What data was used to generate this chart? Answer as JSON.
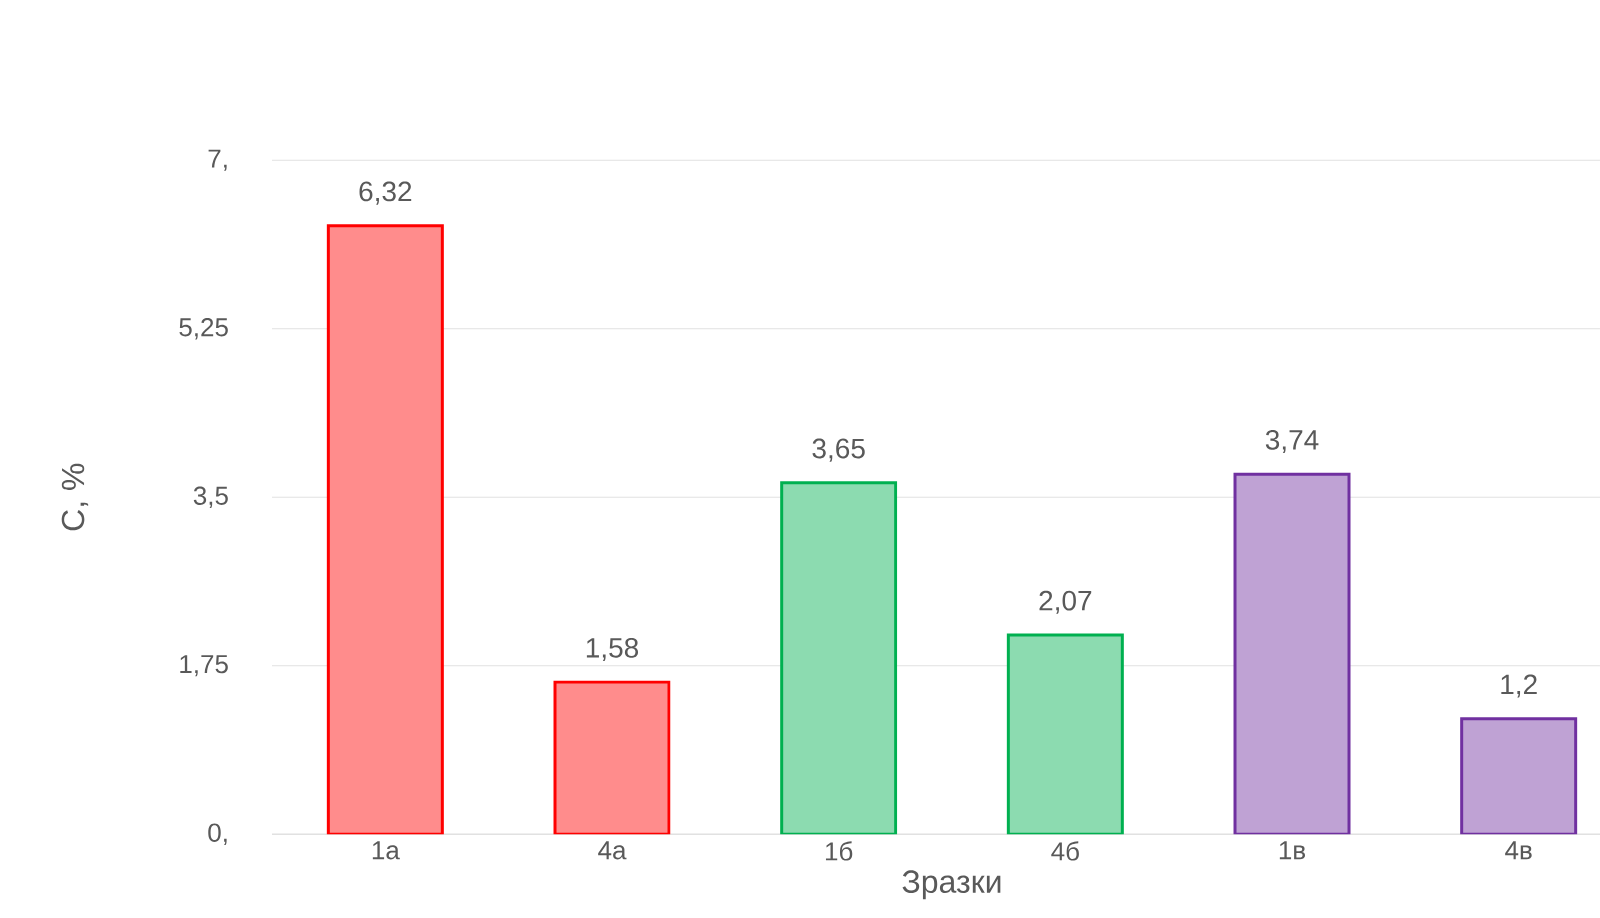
{
  "chart_data": {
    "type": "bar",
    "xlabel": "Зразки",
    "ylabel": "С, %",
    "categories": [
      "1а",
      "4а",
      "1б",
      "4б",
      "1в",
      "4в"
    ],
    "values": [
      6.32,
      1.58,
      3.65,
      2.07,
      3.74,
      1.2
    ],
    "colors": [
      "#ff0000",
      "#ff0000",
      "#00b050",
      "#00b050",
      "#7030a0",
      "#7030a0"
    ],
    "value_labels": [
      "6,32",
      "1,58",
      "3,65",
      "2,07",
      "3,74",
      "1,2"
    ],
    "ylim": [
      0,
      7
    ],
    "yticks": [
      {
        "value": 0,
        "label": "0,"
      },
      {
        "value": 1.75,
        "label": "1,75"
      },
      {
        "value": 3.5,
        "label": "3,5"
      },
      {
        "value": 5.25,
        "label": "5,25"
      },
      {
        "value": 7,
        "label": "7,"
      }
    ],
    "grid": "y"
  }
}
